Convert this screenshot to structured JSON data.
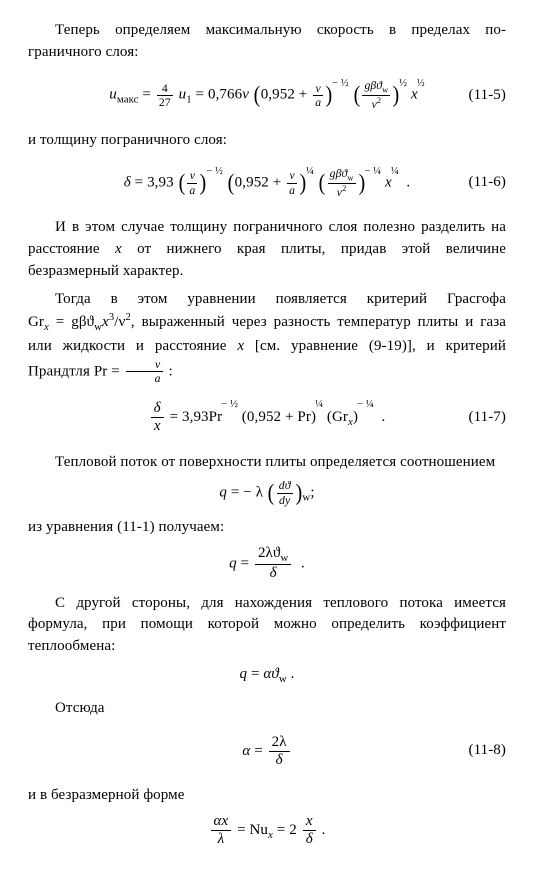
{
  "p1": "Теперь определяем максимальную скорость в пределах по­граничного слоя:",
  "eq1_lhs_sub": "макс",
  "eq1_a": "4",
  "eq1_b": "27",
  "eq1_u1": "u",
  "eq1_u1sub": "1",
  "eq1_coef": "0,766",
  "eq1_inner_const": "0,952",
  "eq1_nu": "ν",
  "eq1_a_var": "a",
  "eq1_pow1": "− ½",
  "eq1_top": "gβϑ",
  "eq1_top_sub": "w",
  "eq1_bot": "ν",
  "eq1_bot_sup": "2",
  "eq1_pow2": "½",
  "eq1_x": "x",
  "eq1_pow3": "½",
  "eq1_num": "(11-5)",
  "p2": "и толщину пограничного слоя:",
  "eq2_delta": "δ",
  "eq2_coef": "3,93",
  "eq2_p1_pow": "− ½",
  "eq2_inner_const": "0,952",
  "eq2_p2_pow": "¼",
  "eq2_p3_pow": "− ¼",
  "eq2_x_pow": "¼",
  "eq2_num": "(11-6)",
  "p3a": "И в этом случае толщину пограничного слоя полезно раз­делить на расстояние ",
  "p3b": " от нижнего края плиты, придав этой величине безразмерный характер.",
  "p4a": "Тогда в этом уравнении появляется критерий Грасгофа ",
  "p4_gr": "Gr",
  "p4_grsub": "x",
  "p4_eq": " = gβϑ",
  "p4_wsub": "w",
  "p4_x3": "x",
  "p4_x3sup": "3",
  "p4_over": "/ν",
  "p4_nu2sup": "2",
  "p4b": ", выраженный через разность температур плиты и газа или жидкости и расстояние ",
  "p4c": " [см. уравнение (9-19)], и критерий Прандтля Pr = ",
  "p4d": " :",
  "eq3_delta": "δ",
  "eq3_x": "x",
  "eq3_coef": "3,93",
  "eq3_Pr": "Pr",
  "eq3_pow1": "− ½",
  "eq3_inner_const": "0,952",
  "eq3_plus": "Pr",
  "eq3_pow2": "¼",
  "eq3_Gr": "Gr",
  "eq3_Gr_sub": "x",
  "eq3_pow3": "− ¼",
  "eq3_num": "(11-7)",
  "p5": "Тепловой поток от поверхности плиты определяется соот­ношением",
  "eq4_q": "q",
  "eq4_lambda": "− λ",
  "eq4_dtheta": "dϑ",
  "eq4_dy": "dy",
  "eq4_sub": "w",
  "eq4_semicolon": ";",
  "p6": "из уравнения (11-1) получаем:",
  "eq5_top": "2λϑ",
  "eq5_top_sub": "w",
  "eq5_bot": "δ",
  "p7": "С другой стороны, для нахождения теплового потока имеется формула, при помощи которой можно определить коэффициент теплообмена:",
  "eq6_q": "q",
  "eq6_rhs": "αϑ",
  "eq6_sub": "w",
  "p8": "Отсюда",
  "eq7_alpha": "α",
  "eq7_top": "2λ",
  "eq7_bot": "δ",
  "eq7_num": "(11-8)",
  "p9": "и в безразмерной форме",
  "eq8_top": "αx",
  "eq8_bot": "λ",
  "eq8_Nu": "Nu",
  "eq8_Nu_sub": "x",
  "eq8_2": "2",
  "eq8_tx": "x",
  "eq8_td": "δ",
  "eq8_dot": "."
}
